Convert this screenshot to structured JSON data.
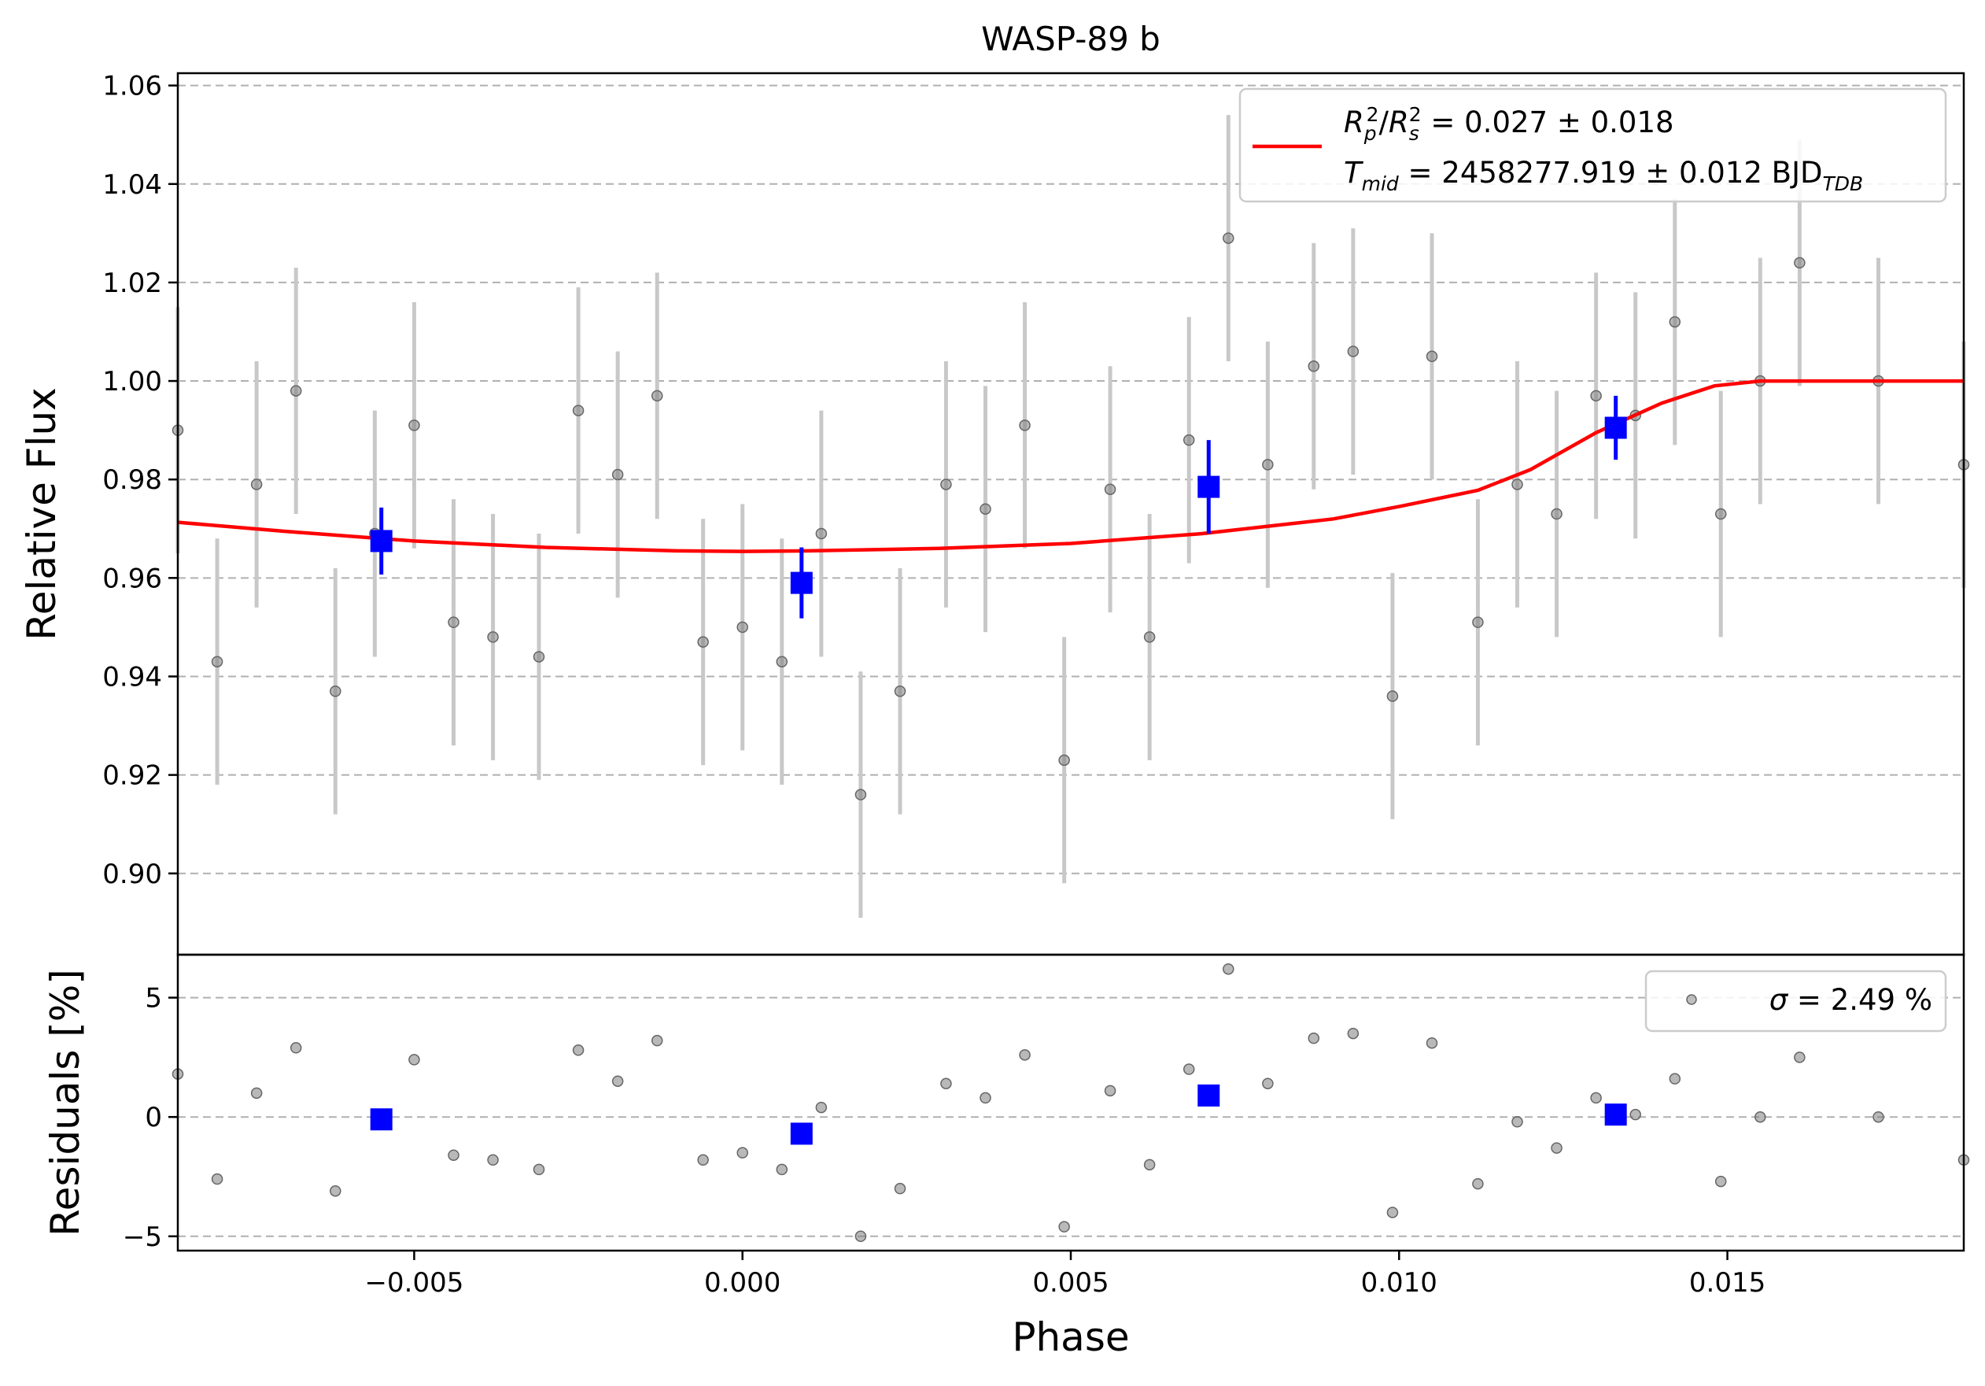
{
  "chart_data": [
    {
      "panel": "main",
      "type": "scatter",
      "title": "WASP-89 b",
      "xlabel": "",
      "ylabel": "Relative Flux",
      "xlim": [
        -0.0086,
        0.0186
      ],
      "ylim": [
        0.8835,
        1.0625
      ],
      "yticks": [
        "0.90",
        "0.92",
        "0.94",
        "0.96",
        "0.98",
        "1.00",
        "1.02",
        "1.04",
        "1.06"
      ],
      "ytick_values": [
        0.9,
        0.92,
        0.94,
        0.96,
        0.98,
        1.0,
        1.02,
        1.04,
        1.06
      ],
      "grid": "horizontal dashed",
      "legend_position": "top-right",
      "legend": {
        "line_label_1_main": "R",
        "line_label_1_sub_p": "p",
        "line_label_1_sup": "2",
        "line_label_1_sub_s": "s",
        "line_label_1_value": " = 0.027 ± 0.018",
        "line_label_2_main": "T",
        "line_label_2_sub": "mid",
        "line_label_2_value": " = 2458277.919 ± 0.012 BJD",
        "line_label_2_unit_sub": "TDB"
      },
      "colors": {
        "data": "#808080",
        "errorbar": "#c8c8c8",
        "binned": "#0000ff",
        "model": "#ff0000"
      },
      "series": [
        {
          "kind": "unbinned-data",
          "x": [
            -0.0086,
            -0.008,
            -0.0074,
            -0.0068,
            -0.0062,
            -0.0056,
            -0.005,
            -0.0044,
            -0.0038,
            -0.0031,
            -0.0025,
            -0.0019,
            -0.0013,
            -0.0006,
            0.0,
            0.0006,
            0.0012,
            0.0018,
            0.0024,
            0.0031,
            0.0037,
            0.0043,
            0.0049,
            0.0056,
            0.0062,
            0.0068,
            0.0074,
            0.008,
            0.0087,
            0.0093,
            0.0099,
            0.0105,
            0.0112,
            0.0118,
            0.0124,
            0.013,
            0.0136,
            0.0142,
            0.0149,
            0.0155,
            0.0161,
            0.0173,
            0.0186
          ],
          "y": [
            0.99,
            0.943,
            0.979,
            0.998,
            0.937,
            0.969,
            0.991,
            0.951,
            0.948,
            0.944,
            0.994,
            0.981,
            0.997,
            0.947,
            0.95,
            0.943,
            0.969,
            0.916,
            0.937,
            0.979,
            0.974,
            0.991,
            0.923,
            0.978,
            0.948,
            0.988,
            1.029,
            0.983,
            1.003,
            1.006,
            0.936,
            1.005,
            0.951,
            0.979,
            0.973,
            0.997,
            0.993,
            1.012,
            0.973,
            1.0,
            1.024,
            1.0,
            0.983
          ],
          "yerr": 0.025
        },
        {
          "kind": "binned-data",
          "x": [
            -0.0055,
            0.0009,
            0.0071,
            0.0133
          ],
          "y": [
            0.9675,
            0.959,
            0.9785,
            0.9905
          ],
          "yerr": [
            0.0068,
            0.0072,
            0.0095,
            0.0065
          ]
        },
        {
          "kind": "model",
          "x": [
            -0.0086,
            -0.007,
            -0.005,
            -0.003,
            -0.001,
            0.0,
            0.001,
            0.003,
            0.005,
            0.007,
            0.009,
            0.01,
            0.0112,
            0.012,
            0.013,
            0.014,
            0.0148,
            0.0155,
            0.0186
          ],
          "y": [
            0.9713,
            0.9695,
            0.9675,
            0.9662,
            0.9655,
            0.9654,
            0.9655,
            0.966,
            0.967,
            0.969,
            0.972,
            0.9745,
            0.9778,
            0.982,
            0.9895,
            0.9955,
            0.999,
            1.0,
            1.0
          ]
        }
      ]
    },
    {
      "panel": "residuals",
      "type": "scatter",
      "xlabel": "Phase",
      "ylabel": "Residuals [%]",
      "xlim": [
        -0.0086,
        0.0186
      ],
      "ylim": [
        -5.6,
        6.8
      ],
      "xticks": [
        "−0.005",
        "0.000",
        "0.005",
        "0.010",
        "0.015"
      ],
      "xtick_values": [
        -0.005,
        0.0,
        0.005,
        0.01,
        0.015
      ],
      "yticks": [
        "−5",
        "0",
        "5"
      ],
      "ytick_values": [
        -5,
        0,
        5
      ],
      "grid": "horizontal dashed",
      "legend_position": "top-right",
      "legend": {
        "sigma_symbol": "σ",
        "sigma_value": " = 2.49 %"
      },
      "series": [
        {
          "kind": "unbinned-residuals",
          "x": [
            -0.0086,
            -0.008,
            -0.0074,
            -0.0068,
            -0.0062,
            -0.005,
            -0.0044,
            -0.0038,
            -0.0031,
            -0.0025,
            -0.0019,
            -0.0013,
            -0.0006,
            0.0,
            0.0006,
            0.0012,
            0.0018,
            0.0024,
            0.0031,
            0.0037,
            0.0043,
            0.0049,
            0.0056,
            0.0062,
            0.0068,
            0.0074,
            0.008,
            0.0087,
            0.0093,
            0.0099,
            0.0105,
            0.0112,
            0.0118,
            0.0124,
            0.013,
            0.0136,
            0.0142,
            0.0149,
            0.0155,
            0.0161,
            0.0173,
            0.0186
          ],
          "y": [
            1.8,
            -2.6,
            1.0,
            2.9,
            -3.1,
            2.4,
            -1.6,
            -1.8,
            -2.2,
            2.8,
            1.5,
            3.2,
            -1.8,
            -1.5,
            -2.2,
            0.4,
            -5.0,
            -3.0,
            1.4,
            0.8,
            2.6,
            -4.6,
            1.1,
            -2.0,
            2.0,
            6.2,
            1.4,
            3.3,
            3.5,
            -4.0,
            3.1,
            -2.8,
            -0.2,
            -1.3,
            0.8,
            0.1,
            1.6,
            -2.7,
            0.0,
            2.5,
            0.0,
            -1.8
          ]
        },
        {
          "kind": "binned-residuals",
          "x": [
            -0.0055,
            0.0009,
            0.0071,
            0.0133
          ],
          "y": [
            -0.1,
            -0.7,
            0.9,
            0.1
          ]
        }
      ]
    }
  ]
}
